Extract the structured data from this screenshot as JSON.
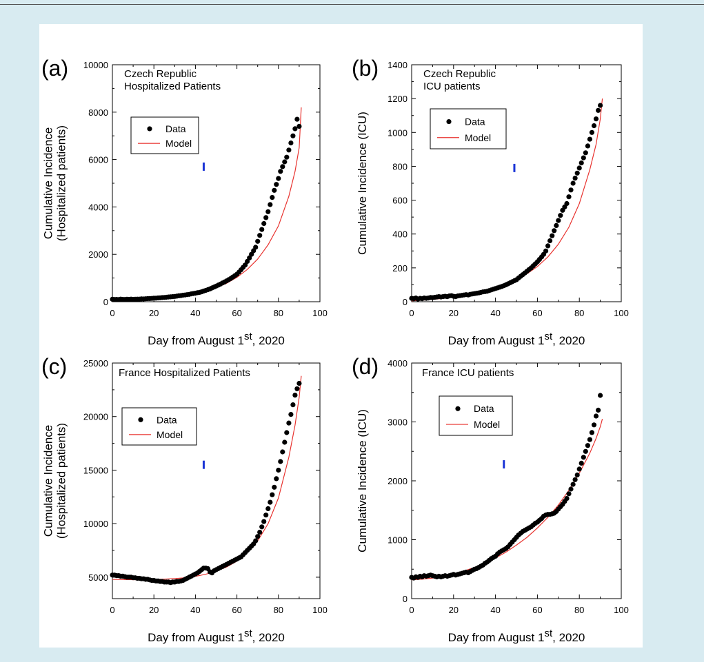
{
  "chart_data": [
    {
      "panel_label": "(a)",
      "type": "scatter",
      "title_lines": [
        "Czech Republic",
        "Hospitalized Patients"
      ],
      "xlabel": "Day from August 1",
      "xlabel_sup": "st",
      "xlabel_suffix": ", 2020",
      "ylabel_lines": [
        "Cumulative Incidence",
        "(Hospitalized patients)"
      ],
      "xlim": [
        0,
        100
      ],
      "ylim": [
        0,
        10000
      ],
      "xticks": [
        0,
        20,
        40,
        60,
        80,
        100
      ],
      "yticks": [
        0,
        2000,
        4000,
        6000,
        8000,
        10000
      ],
      "legend": {
        "placement": "upper-left",
        "entries": [
          "Data",
          "Model"
        ]
      },
      "marker": {
        "x": 44,
        "y": 5700
      },
      "series": [
        {
          "name": "Data",
          "kind": "points",
          "color": "#000000",
          "x": [
            0,
            1,
            2,
            3,
            4,
            5,
            6,
            7,
            8,
            9,
            10,
            11,
            12,
            13,
            14,
            15,
            16,
            17,
            18,
            19,
            20,
            21,
            22,
            23,
            24,
            25,
            26,
            27,
            28,
            29,
            30,
            31,
            32,
            33,
            34,
            35,
            36,
            37,
            38,
            39,
            40,
            41,
            42,
            43,
            44,
            45,
            46,
            47,
            48,
            49,
            50,
            51,
            52,
            53,
            54,
            55,
            56,
            57,
            58,
            59,
            60,
            61,
            62,
            63,
            64,
            65,
            66,
            67,
            68,
            69,
            70,
            71,
            72,
            73,
            74,
            75,
            76,
            77,
            78,
            79,
            80,
            81,
            82,
            83,
            84,
            85,
            86,
            87,
            88,
            89,
            90
          ],
          "y": [
            105,
            95,
            100,
            90,
            110,
            100,
            95,
            105,
            100,
            110,
            100,
            105,
            110,
            110,
            120,
            115,
            125,
            130,
            135,
            140,
            150,
            150,
            160,
            165,
            175,
            180,
            190,
            200,
            205,
            215,
            225,
            235,
            250,
            260,
            275,
            285,
            300,
            310,
            330,
            345,
            360,
            380,
            395,
            420,
            450,
            480,
            510,
            540,
            580,
            620,
            660,
            700,
            740,
            790,
            830,
            880,
            930,
            980,
            1040,
            1100,
            1160,
            1250,
            1350,
            1450,
            1550,
            1700,
            1850,
            2000,
            2150,
            2300,
            2550,
            2800,
            3050,
            3300,
            3550,
            3800,
            4100,
            4400,
            4700,
            4950,
            5200,
            5500,
            5700,
            5900,
            6100,
            6400,
            6700,
            7000,
            7300,
            7700,
            7400
          ]
        },
        {
          "name": "Model",
          "kind": "line",
          "color": "#e8332f",
          "x": [
            0,
            5,
            10,
            15,
            20,
            25,
            30,
            35,
            40,
            45,
            50,
            55,
            60,
            65,
            70,
            75,
            80,
            85,
            88,
            90,
            91
          ],
          "y": [
            30,
            40,
            60,
            80,
            110,
            150,
            200,
            260,
            340,
            450,
            590,
            780,
            1030,
            1360,
            1800,
            2400,
            3200,
            4450,
            5500,
            6500,
            8200
          ]
        }
      ]
    },
    {
      "panel_label": "(b)",
      "type": "scatter",
      "title_lines": [
        "Czech Republic",
        "ICU patients"
      ],
      "xlabel": "Day from August 1",
      "xlabel_sup": "st",
      "xlabel_suffix": ", 2020",
      "ylabel_lines": [
        "Cumulative  Incidence (ICU)"
      ],
      "xlim": [
        0,
        100
      ],
      "ylim": [
        0,
        1400
      ],
      "xticks": [
        0,
        20,
        40,
        60,
        80,
        100
      ],
      "yticks": [
        0,
        200,
        400,
        600,
        800,
        1000,
        1200,
        1400
      ],
      "legend": {
        "placement": "upper-left",
        "entries": [
          "Data",
          "Model"
        ]
      },
      "marker": {
        "x": 49,
        "y": 790
      },
      "series": [
        {
          "name": "Data",
          "kind": "points",
          "color": "#000000",
          "x": [
            0,
            1,
            2,
            3,
            4,
            5,
            6,
            7,
            8,
            9,
            10,
            11,
            12,
            13,
            14,
            15,
            16,
            17,
            18,
            19,
            20,
            21,
            22,
            23,
            24,
            25,
            26,
            27,
            28,
            29,
            30,
            31,
            32,
            33,
            34,
            35,
            36,
            37,
            38,
            39,
            40,
            41,
            42,
            43,
            44,
            45,
            46,
            47,
            48,
            49,
            50,
            51,
            52,
            53,
            54,
            55,
            56,
            57,
            58,
            59,
            60,
            61,
            62,
            63,
            64,
            65,
            66,
            67,
            68,
            69,
            70,
            71,
            72,
            73,
            74,
            75,
            76,
            77,
            78,
            79,
            80,
            81,
            82,
            83,
            84,
            85,
            86,
            87,
            88,
            89,
            90
          ],
          "y": [
            20,
            18,
            22,
            16,
            20,
            18,
            22,
            20,
            22,
            25,
            24,
            26,
            28,
            30,
            28,
            30,
            32,
            30,
            34,
            36,
            32,
            30,
            34,
            36,
            38,
            40,
            42,
            40,
            44,
            46,
            48,
            50,
            52,
            55,
            58,
            60,
            62,
            66,
            70,
            74,
            78,
            82,
            86,
            90,
            95,
            100,
            106,
            112,
            118,
            124,
            130,
            140,
            150,
            160,
            170,
            180,
            190,
            200,
            212,
            224,
            236,
            250,
            265,
            280,
            300,
            330,
            360,
            390,
            420,
            450,
            480,
            510,
            540,
            560,
            580,
            620,
            660,
            700,
            730,
            760,
            790,
            820,
            850,
            880,
            920,
            960,
            1000,
            1040,
            1080,
            1130,
            1160
          ]
        },
        {
          "name": "Model",
          "kind": "line",
          "color": "#e8332f",
          "x": [
            0,
            5,
            10,
            15,
            20,
            25,
            30,
            35,
            40,
            45,
            50,
            55,
            60,
            65,
            70,
            75,
            80,
            85,
            88,
            90,
            91
          ],
          "y": [
            5,
            9,
            14,
            20,
            28,
            37,
            48,
            62,
            80,
            102,
            130,
            165,
            208,
            265,
            340,
            440,
            580,
            780,
            930,
            1080,
            1200
          ]
        }
      ]
    },
    {
      "panel_label": "(c)",
      "type": "scatter",
      "title_lines": [
        "France Hospitalized Patients"
      ],
      "xlabel": "Day from August 1",
      "xlabel_sup": "st",
      "xlabel_suffix": ", 2020",
      "ylabel_lines": [
        "Cumulative Incidence",
        "(Hospitalized patients)"
      ],
      "xlim": [
        0,
        100
      ],
      "ylim": [
        3000,
        25000
      ],
      "xticks": [
        0,
        20,
        40,
        60,
        80,
        100
      ],
      "yticks": [
        5000,
        10000,
        15000,
        20000,
        25000
      ],
      "legend": {
        "placement": "upper-left",
        "entries": [
          "Data",
          "Model"
        ]
      },
      "marker": {
        "x": 44,
        "y": 15500
      },
      "series": [
        {
          "name": "Data",
          "kind": "points",
          "color": "#000000",
          "x": [
            0,
            1,
            2,
            3,
            4,
            5,
            6,
            7,
            8,
            9,
            10,
            11,
            12,
            13,
            14,
            15,
            16,
            17,
            18,
            19,
            20,
            21,
            22,
            23,
            24,
            25,
            26,
            27,
            28,
            29,
            30,
            31,
            32,
            33,
            34,
            35,
            36,
            37,
            38,
            39,
            40,
            41,
            42,
            43,
            44,
            45,
            46,
            47,
            48,
            49,
            50,
            51,
            52,
            53,
            54,
            55,
            56,
            57,
            58,
            59,
            60,
            61,
            62,
            63,
            64,
            65,
            66,
            67,
            68,
            69,
            70,
            71,
            72,
            73,
            74,
            75,
            76,
            77,
            78,
            79,
            80,
            81,
            82,
            83,
            84,
            85,
            86,
            87,
            88,
            89,
            90
          ],
          "y": [
            5200,
            5200,
            5150,
            5150,
            5100,
            5100,
            5050,
            5000,
            5000,
            5000,
            4950,
            4950,
            4900,
            4900,
            4850,
            4850,
            4800,
            4800,
            4750,
            4700,
            4700,
            4650,
            4650,
            4600,
            4600,
            4550,
            4550,
            4550,
            4500,
            4550,
            4550,
            4600,
            4600,
            4650,
            4700,
            4800,
            4900,
            5000,
            5100,
            5200,
            5300,
            5400,
            5550,
            5700,
            5850,
            5850,
            5800,
            5500,
            5400,
            5600,
            5700,
            5800,
            5900,
            6000,
            6100,
            6200,
            6300,
            6400,
            6500,
            6600,
            6700,
            6800,
            6900,
            7100,
            7300,
            7500,
            7700,
            7900,
            8100,
            8400,
            8800,
            9200,
            9700,
            10200,
            10800,
            11400,
            12000,
            12700,
            13400,
            14200,
            15000,
            15800,
            16700,
            17600,
            18500,
            19400,
            20200,
            21100,
            22000,
            22600,
            23100
          ]
        },
        {
          "name": "Model",
          "kind": "line",
          "color": "#e8332f",
          "x": [
            0,
            5,
            10,
            15,
            20,
            25,
            30,
            35,
            40,
            45,
            50,
            55,
            60,
            65,
            70,
            75,
            80,
            85,
            88,
            90,
            91
          ],
          "y": [
            4800,
            4780,
            4770,
            4770,
            4790,
            4820,
            4870,
            4950,
            5080,
            5280,
            5560,
            5950,
            6500,
            7300,
            8400,
            10000,
            12400,
            16200,
            19200,
            21800,
            23800
          ]
        }
      ]
    },
    {
      "panel_label": "(d)",
      "type": "scatter",
      "title_lines": [
        "France ICU patients"
      ],
      "xlabel": "Day from August 1",
      "xlabel_sup": "st",
      "xlabel_suffix": ", 2020",
      "ylabel_lines": [
        "Cumulative  Incidence (ICU)"
      ],
      "xlim": [
        0,
        100
      ],
      "ylim": [
        0,
        4000
      ],
      "xticks": [
        0,
        20,
        40,
        60,
        80,
        100
      ],
      "yticks": [
        0,
        1000,
        2000,
        3000,
        4000
      ],
      "legend": {
        "placement": "upper-left",
        "entries": [
          "Data",
          "Model"
        ]
      },
      "marker": {
        "x": 44,
        "y": 2280
      },
      "series": [
        {
          "name": "Data",
          "kind": "points",
          "color": "#000000",
          "x": [
            0,
            1,
            2,
            3,
            4,
            5,
            6,
            7,
            8,
            9,
            10,
            11,
            12,
            13,
            14,
            15,
            16,
            17,
            18,
            19,
            20,
            21,
            22,
            23,
            24,
            25,
            26,
            27,
            28,
            29,
            30,
            31,
            32,
            33,
            34,
            35,
            36,
            37,
            38,
            39,
            40,
            41,
            42,
            43,
            44,
            45,
            46,
            47,
            48,
            49,
            50,
            51,
            52,
            53,
            54,
            55,
            56,
            57,
            58,
            59,
            60,
            61,
            62,
            63,
            64,
            65,
            66,
            67,
            68,
            69,
            70,
            71,
            72,
            73,
            74,
            75,
            76,
            77,
            78,
            79,
            80,
            81,
            82,
            83,
            84,
            85,
            86,
            87,
            88,
            89,
            90
          ],
          "y": [
            360,
            350,
            370,
            360,
            380,
            370,
            390,
            380,
            390,
            400,
            390,
            380,
            370,
            380,
            370,
            380,
            390,
            380,
            390,
            400,
            410,
            400,
            410,
            420,
            430,
            440,
            450,
            440,
            460,
            480,
            500,
            510,
            530,
            550,
            570,
            600,
            620,
            650,
            680,
            700,
            720,
            760,
            790,
            810,
            830,
            850,
            880,
            920,
            960,
            1000,
            1040,
            1080,
            1110,
            1140,
            1160,
            1180,
            1200,
            1220,
            1250,
            1280,
            1300,
            1330,
            1360,
            1400,
            1420,
            1430,
            1430,
            1440,
            1450,
            1480,
            1520,
            1560,
            1600,
            1650,
            1700,
            1780,
            1860,
            1940,
            2020,
            2100,
            2200,
            2300,
            2400,
            2500,
            2600,
            2700,
            2820,
            2950,
            3100,
            3200,
            3450
          ]
        },
        {
          "name": "Model",
          "kind": "line",
          "color": "#e8332f",
          "x": [
            0,
            5,
            10,
            15,
            20,
            25,
            30,
            35,
            40,
            45,
            50,
            55,
            60,
            65,
            70,
            75,
            80,
            85,
            88,
            90,
            91
          ],
          "y": [
            320,
            330,
            350,
            380,
            420,
            470,
            530,
            600,
            690,
            790,
            910,
            1040,
            1200,
            1380,
            1590,
            1840,
            2130,
            2470,
            2720,
            2920,
            3050
          ]
        }
      ]
    }
  ]
}
